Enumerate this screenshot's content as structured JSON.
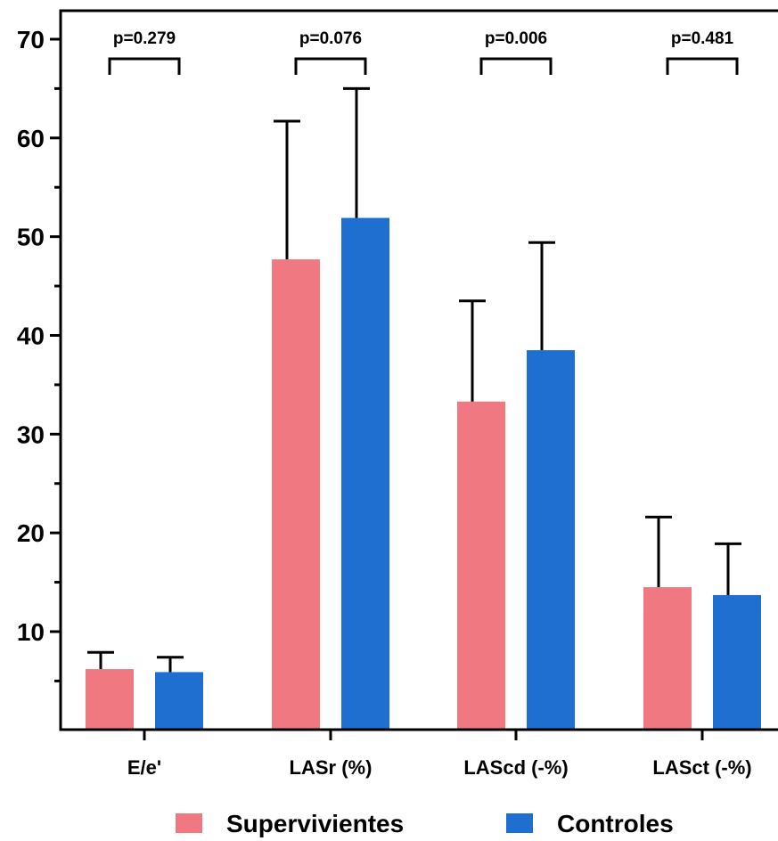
{
  "chart_data": {
    "type": "bar",
    "title": "",
    "xlabel": "",
    "ylabel": "",
    "ylim": [
      0,
      70
    ],
    "yticks": [
      10,
      20,
      30,
      40,
      50,
      60,
      70
    ],
    "categories": [
      "E/e'",
      "LASr (%)",
      "LAScd (-%)",
      "LASct (-%)"
    ],
    "series": [
      {
        "name": "Supervivientes",
        "color": "#f07880",
        "values": [
          6.2,
          47.7,
          33.3,
          14.5
        ],
        "error": [
          1.7,
          14.0,
          10.2,
          7.1
        ]
      },
      {
        "name": "Controles",
        "color": "#1f6fd0",
        "values": [
          5.9,
          51.9,
          38.5,
          13.7
        ],
        "error": [
          1.5,
          13.1,
          10.9,
          5.2
        ]
      }
    ],
    "p_values": [
      "p=0.279",
      "p=0.076",
      "p=0.006",
      "p=0.481"
    ],
    "legend_position": "bottom",
    "grid": false
  }
}
